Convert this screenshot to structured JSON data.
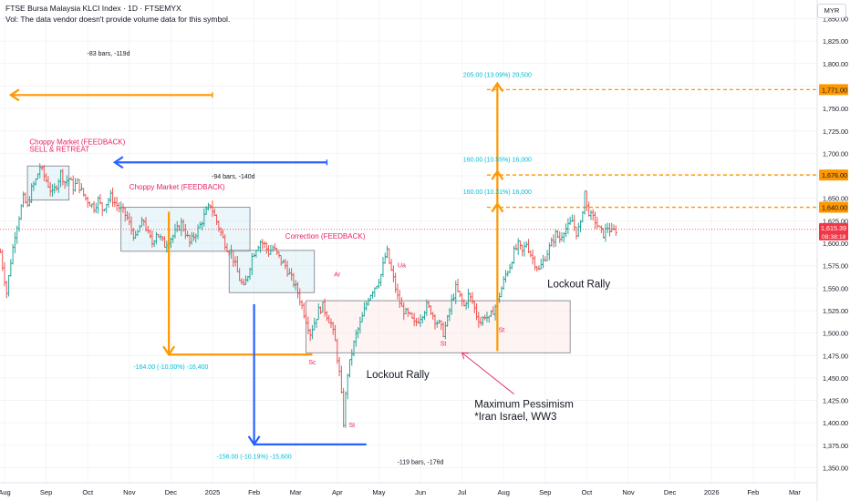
{
  "header": {
    "symbol_line": "FTSE Bursa Malaysia KLCI Index · 1D · FTSEMYX",
    "vol_line": "Vol: The data vendor doesn't provide volume data for this symbol."
  },
  "currency_button": "MYR",
  "chart_data": {
    "type": "candlestick",
    "ylim": [
      1340,
      1862
    ],
    "y_ticks": [
      1350,
      1375,
      1400,
      1425,
      1450,
      1475,
      1500,
      1525,
      1550,
      1575,
      1600,
      1625,
      1650,
      1675,
      1700,
      1725,
      1750,
      1775,
      1800,
      1825,
      1850
    ],
    "x_ticks": [
      "Aug",
      "Sep",
      "Oct",
      "Nov",
      "Dec",
      "2025",
      "Feb",
      "Mar",
      "Apr",
      "May",
      "Jun",
      "Jul",
      "Aug",
      "Sep",
      "Oct",
      "Nov",
      "Dec",
      "2026",
      "Feb",
      "Mar"
    ],
    "x_tick_months": [
      0,
      1,
      2,
      3,
      4,
      5,
      6,
      7,
      8,
      9,
      10,
      11,
      12,
      13,
      14,
      15,
      16,
      17,
      18,
      19
    ],
    "last_price": 1615.39,
    "last_price_label": "1,615.39",
    "countdown": "08:38:18",
    "series": [
      {
        "m": -0.1,
        "v": 1590
      },
      {
        "m": 0.05,
        "v": 1545
      },
      {
        "m": 0.15,
        "v": 1580
      },
      {
        "m": 0.25,
        "v": 1610
      },
      {
        "m": 0.35,
        "v": 1630
      },
      {
        "m": 0.45,
        "v": 1650
      },
      {
        "m": 0.55,
        "v": 1640
      },
      {
        "m": 0.65,
        "v": 1660
      },
      {
        "m": 0.75,
        "v": 1670
      },
      {
        "m": 0.85,
        "v": 1685
      },
      {
        "m": 0.95,
        "v": 1675
      },
      {
        "m": 1.05,
        "v": 1665
      },
      {
        "m": 1.15,
        "v": 1655
      },
      {
        "m": 1.25,
        "v": 1665
      },
      {
        "m": 1.35,
        "v": 1678
      },
      {
        "m": 1.45,
        "v": 1668
      },
      {
        "m": 1.55,
        "v": 1672
      },
      {
        "m": 1.65,
        "v": 1662
      },
      {
        "m": 1.75,
        "v": 1668
      },
      {
        "m": 1.85,
        "v": 1658
      },
      {
        "m": 1.95,
        "v": 1650
      },
      {
        "m": 2.05,
        "v": 1645
      },
      {
        "m": 2.15,
        "v": 1640
      },
      {
        "m": 2.25,
        "v": 1648
      },
      {
        "m": 2.35,
        "v": 1638
      },
      {
        "m": 2.45,
        "v": 1645
      },
      {
        "m": 2.55,
        "v": 1652
      },
      {
        "m": 2.65,
        "v": 1645
      },
      {
        "m": 2.75,
        "v": 1640
      },
      {
        "m": 2.85,
        "v": 1635
      },
      {
        "m": 2.95,
        "v": 1628
      },
      {
        "m": 3.05,
        "v": 1615
      },
      {
        "m": 3.15,
        "v": 1605
      },
      {
        "m": 3.25,
        "v": 1618
      },
      {
        "m": 3.35,
        "v": 1625
      },
      {
        "m": 3.45,
        "v": 1610
      },
      {
        "m": 3.55,
        "v": 1600
      },
      {
        "m": 3.65,
        "v": 1612
      },
      {
        "m": 3.75,
        "v": 1605
      },
      {
        "m": 3.85,
        "v": 1598
      },
      {
        "m": 3.95,
        "v": 1604
      },
      {
        "m": 4.05,
        "v": 1608
      },
      {
        "m": 4.15,
        "v": 1615
      },
      {
        "m": 4.25,
        "v": 1622
      },
      {
        "m": 4.35,
        "v": 1612
      },
      {
        "m": 4.45,
        "v": 1600
      },
      {
        "m": 4.55,
        "v": 1608
      },
      {
        "m": 4.65,
        "v": 1615
      },
      {
        "m": 4.75,
        "v": 1625
      },
      {
        "m": 4.85,
        "v": 1635
      },
      {
        "m": 4.95,
        "v": 1643
      },
      {
        "m": 5.05,
        "v": 1630
      },
      {
        "m": 5.15,
        "v": 1618
      },
      {
        "m": 5.25,
        "v": 1605
      },
      {
        "m": 5.35,
        "v": 1595
      },
      {
        "m": 5.45,
        "v": 1590
      },
      {
        "m": 5.55,
        "v": 1575
      },
      {
        "m": 5.65,
        "v": 1560
      },
      {
        "m": 5.75,
        "v": 1550
      },
      {
        "m": 5.85,
        "v": 1565
      },
      {
        "m": 5.95,
        "v": 1585
      },
      {
        "m": 6.05,
        "v": 1595
      },
      {
        "m": 6.15,
        "v": 1602
      },
      {
        "m": 6.25,
        "v": 1598
      },
      {
        "m": 6.35,
        "v": 1590
      },
      {
        "m": 6.45,
        "v": 1595
      },
      {
        "m": 6.55,
        "v": 1588
      },
      {
        "m": 6.65,
        "v": 1580
      },
      {
        "m": 6.75,
        "v": 1575
      },
      {
        "m": 6.85,
        "v": 1565
      },
      {
        "m": 6.95,
        "v": 1556
      },
      {
        "m": 7.05,
        "v": 1545
      },
      {
        "m": 7.15,
        "v": 1530
      },
      {
        "m": 7.25,
        "v": 1515
      },
      {
        "m": 7.35,
        "v": 1500
      },
      {
        "m": 7.45,
        "v": 1512
      },
      {
        "m": 7.55,
        "v": 1525
      },
      {
        "m": 7.65,
        "v": 1530
      },
      {
        "m": 7.75,
        "v": 1520
      },
      {
        "m": 7.85,
        "v": 1510
      },
      {
        "m": 7.95,
        "v": 1490
      },
      {
        "m": 8.05,
        "v": 1455
      },
      {
        "m": 8.1,
        "v": 1430
      },
      {
        "m": 8.15,
        "v": 1400
      },
      {
        "m": 8.2,
        "v": 1430
      },
      {
        "m": 8.25,
        "v": 1455
      },
      {
        "m": 8.35,
        "v": 1478
      },
      {
        "m": 8.45,
        "v": 1498
      },
      {
        "m": 8.55,
        "v": 1510
      },
      {
        "m": 8.65,
        "v": 1525
      },
      {
        "m": 8.75,
        "v": 1540
      },
      {
        "m": 8.85,
        "v": 1548
      },
      {
        "m": 8.95,
        "v": 1555
      },
      {
        "m": 9.05,
        "v": 1565
      },
      {
        "m": 9.15,
        "v": 1585
      },
      {
        "m": 9.2,
        "v": 1590
      },
      {
        "m": 9.25,
        "v": 1578
      },
      {
        "m": 9.35,
        "v": 1560
      },
      {
        "m": 9.45,
        "v": 1540
      },
      {
        "m": 9.55,
        "v": 1528
      },
      {
        "m": 9.65,
        "v": 1522
      },
      {
        "m": 9.75,
        "v": 1518
      },
      {
        "m": 9.85,
        "v": 1510
      },
      {
        "m": 9.95,
        "v": 1515
      },
      {
        "m": 10.05,
        "v": 1522
      },
      {
        "m": 10.15,
        "v": 1530
      },
      {
        "m": 10.25,
        "v": 1525
      },
      {
        "m": 10.35,
        "v": 1515
      },
      {
        "m": 10.45,
        "v": 1510
      },
      {
        "m": 10.55,
        "v": 1500
      },
      {
        "m": 10.65,
        "v": 1515
      },
      {
        "m": 10.75,
        "v": 1535
      },
      {
        "m": 10.85,
        "v": 1550
      },
      {
        "m": 10.95,
        "v": 1540
      },
      {
        "m": 11.05,
        "v": 1530
      },
      {
        "m": 11.15,
        "v": 1542
      },
      {
        "m": 11.25,
        "v": 1535
      },
      {
        "m": 11.35,
        "v": 1520
      },
      {
        "m": 11.45,
        "v": 1512
      },
      {
        "m": 11.55,
        "v": 1520
      },
      {
        "m": 11.65,
        "v": 1515
      },
      {
        "m": 11.75,
        "v": 1525
      },
      {
        "m": 11.85,
        "v": 1535
      },
      {
        "m": 11.95,
        "v": 1550
      },
      {
        "m": 12.05,
        "v": 1565
      },
      {
        "m": 12.15,
        "v": 1575
      },
      {
        "m": 12.25,
        "v": 1590
      },
      {
        "m": 12.35,
        "v": 1598
      },
      {
        "m": 12.45,
        "v": 1590
      },
      {
        "m": 12.55,
        "v": 1600
      },
      {
        "m": 12.65,
        "v": 1588
      },
      {
        "m": 12.75,
        "v": 1578
      },
      {
        "m": 12.85,
        "v": 1570
      },
      {
        "m": 12.95,
        "v": 1580
      },
      {
        "m": 13.05,
        "v": 1590
      },
      {
        "m": 13.15,
        "v": 1600
      },
      {
        "m": 13.25,
        "v": 1610
      },
      {
        "m": 13.35,
        "v": 1605
      },
      {
        "m": 13.45,
        "v": 1615
      },
      {
        "m": 13.55,
        "v": 1618
      },
      {
        "m": 13.65,
        "v": 1625
      },
      {
        "m": 13.75,
        "v": 1612
      },
      {
        "m": 13.85,
        "v": 1620
      },
      {
        "m": 13.9,
        "v": 1638
      },
      {
        "m": 13.95,
        "v": 1658
      },
      {
        "m": 14.0,
        "v": 1640
      },
      {
        "m": 14.1,
        "v": 1630
      },
      {
        "m": 14.2,
        "v": 1625
      },
      {
        "m": 14.3,
        "v": 1615
      },
      {
        "m": 14.4,
        "v": 1610
      },
      {
        "m": 14.5,
        "v": 1618
      },
      {
        "m": 14.6,
        "v": 1612
      },
      {
        "m": 14.7,
        "v": 1615
      }
    ]
  },
  "drawings": {
    "price_lines": [
      {
        "value": 1771.0,
        "label": "1,771.00",
        "m_start": 11.6
      },
      {
        "value": 1676.0,
        "label": "1,676.00",
        "m_start": 11.6
      },
      {
        "value": 1640.0,
        "label": "1,640.00",
        "m_start": 11.6
      }
    ],
    "boxes": [
      {
        "m1": 0.55,
        "m2": 1.55,
        "v1": 1648,
        "v2": 1686,
        "kind": "blue"
      },
      {
        "m1": 2.8,
        "m2": 5.9,
        "v1": 1591,
        "v2": 1640,
        "kind": "blue"
      },
      {
        "m1": 5.4,
        "m2": 7.45,
        "v1": 1545,
        "v2": 1592,
        "kind": "blue"
      },
      {
        "m1": 7.25,
        "m2": 13.6,
        "v1": 1478,
        "v2": 1536,
        "kind": "red"
      }
    ],
    "arrows": [
      {
        "m1": 5.0,
        "v1": 1765,
        "m2": 0.15,
        "v2": 1765,
        "color": "#ff9800"
      },
      {
        "m1": 7.75,
        "v1": 1690,
        "m2": 2.65,
        "v2": 1690,
        "color": "#2962ff"
      },
      {
        "m1": 3.95,
        "v1": 1635,
        "m2": 3.95,
        "v2": 1476,
        "color": "#ff9800",
        "corner": [
          7.4,
          1476
        ]
      },
      {
        "m1": 6.0,
        "v1": 1532,
        "m2": 6.0,
        "v2": 1376,
        "color": "#2962ff",
        "corner": [
          8.7,
          1376
        ]
      },
      {
        "m1": 11.85,
        "v1": 1480,
        "m2": 11.85,
        "v2": 1778,
        "color": "#ff9800"
      },
      {
        "m1": 11.85,
        "v1": 1620,
        "m2": 11.85,
        "v2": 1680,
        "color": "#ff9800",
        "head_only": true
      },
      {
        "m1": 11.85,
        "v1": 1600,
        "m2": 11.85,
        "v2": 1644,
        "color": "#ff9800",
        "head_only": true
      }
    ],
    "pointer": {
      "m1": 12.25,
      "v1": 1432,
      "m2": 11.0,
      "v2": 1478
    }
  },
  "annotations": [
    {
      "text": "-83 bars, -119d",
      "m": 2.5,
      "v": 1809,
      "color": "#131722",
      "size": 7
    },
    {
      "text": "-94 bars, -140d",
      "m": 5.5,
      "v": 1672,
      "color": "#131722",
      "size": 7
    },
    {
      "text": "-119 bars, -176d",
      "m": 10.0,
      "v": 1354,
      "color": "#131722",
      "size": 7
    },
    {
      "text": "205.00 (13.09%) 20,500",
      "m": 11.85,
      "v": 1785,
      "color": "#00bcd4",
      "size": 7
    },
    {
      "text": "160.00 (10.55%) 16,000",
      "m": 11.85,
      "v": 1691,
      "color": "#00bcd4",
      "size": 7
    },
    {
      "text": "160.00 (10.31%) 16,000",
      "m": 11.85,
      "v": 1655,
      "color": "#00bcd4",
      "size": 7
    },
    {
      "text": "-164.00 (-10.00%) -16,400",
      "m": 4.0,
      "v": 1460,
      "color": "#00bcd4",
      "size": 7
    },
    {
      "text": "-156.00 (-10.19%) -15,600",
      "m": 6.0,
      "v": 1360,
      "color": "#00bcd4",
      "size": 7
    },
    {
      "text": "Choppy Market (FEEDBACK)",
      "m": 0.6,
      "v": 1710,
      "color": "#e91e63",
      "size": 8,
      "anchor": "start"
    },
    {
      "text": "SELL & RETREAT",
      "m": 0.6,
      "v": 1702,
      "color": "#e91e63",
      "size": 8,
      "anchor": "start"
    },
    {
      "text": "Choppy Market (FEEDBACK)",
      "m": 3.0,
      "v": 1660,
      "color": "#e91e63",
      "size": 8,
      "anchor": "start"
    },
    {
      "text": "Correction (FEEDBACK)",
      "m": 6.75,
      "v": 1605,
      "color": "#e91e63",
      "size": 8,
      "anchor": "start"
    },
    {
      "text": "Ar",
      "m": 8.0,
      "v": 1563,
      "color": "#e91e63",
      "size": 7
    },
    {
      "text": "Sc",
      "m": 7.4,
      "v": 1465,
      "color": "#e91e63",
      "size": 7
    },
    {
      "text": "St",
      "m": 8.35,
      "v": 1395,
      "color": "#e91e63",
      "size": 7
    },
    {
      "text": "Ua",
      "m": 9.55,
      "v": 1573,
      "color": "#e91e63",
      "size": 7
    },
    {
      "text": "St",
      "m": 10.55,
      "v": 1486,
      "color": "#e91e63",
      "size": 7
    },
    {
      "text": "St",
      "m": 11.95,
      "v": 1501,
      "color": "#e91e63",
      "size": 7
    },
    {
      "text": "Lockout Rally",
      "m": 8.7,
      "v": 1450,
      "color": "#131722",
      "size": 11.5,
      "anchor": "start"
    },
    {
      "text": "Lockout Rally",
      "m": 13.05,
      "v": 1551,
      "color": "#131722",
      "size": 11.5,
      "anchor": "start"
    },
    {
      "text": "Maximum Pessimism",
      "m": 11.3,
      "v": 1417,
      "color": "#131722",
      "size": 11.5,
      "anchor": "start"
    },
    {
      "text": "*Iran Israel, WW3",
      "m": 11.3,
      "v": 1403,
      "color": "#131722",
      "size": 11.5,
      "anchor": "start"
    }
  ],
  "colors": {
    "up": "#26a69a",
    "down": "#ef5350",
    "orange": "#ff9800",
    "blue": "#2962ff",
    "cyan": "#00bcd4",
    "magenta": "#e91e63",
    "price_tag": "#f23645",
    "box_blue_fill": "#d1ecf1",
    "box_red_fill": "#fbe9e7"
  }
}
